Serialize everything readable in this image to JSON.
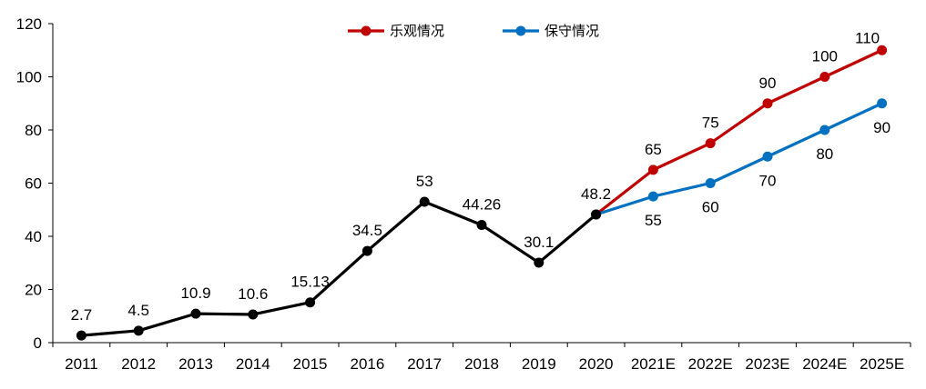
{
  "chart_data": {
    "type": "line",
    "categories": [
      "2011",
      "2012",
      "2013",
      "2014",
      "2015",
      "2016",
      "2017",
      "2018",
      "2019",
      "2020",
      "2021E",
      "2022E",
      "2023E",
      "2024E",
      "2025E"
    ],
    "ylim": [
      0,
      120
    ],
    "yticks": [
      "0",
      "20",
      "40",
      "60",
      "80",
      "100",
      "120"
    ],
    "legend_position": "top-center",
    "series": [
      {
        "color": "#000000",
        "x": [
          "2011",
          "2012",
          "2013",
          "2014",
          "2015",
          "2016",
          "2017",
          "2018",
          "2019",
          "2020"
        ],
        "values": [
          2.7,
          4.5,
          10.9,
          10.6,
          15.13,
          34.5,
          53,
          44.26,
          30.1,
          48.2
        ],
        "labels": [
          "2.7",
          "4.5",
          "10.9",
          "10.6",
          "15.13",
          "34.5",
          "53",
          "44.26",
          "30.1",
          "48.2"
        ],
        "label_pos": [
          "above",
          "above",
          "above",
          "above",
          "above",
          "above",
          "above",
          "above",
          "above",
          "above"
        ]
      },
      {
        "name": "乐观情况",
        "color": "#C00000",
        "x": [
          "2020",
          "2021E",
          "2022E",
          "2023E",
          "2024E",
          "2025E"
        ],
        "values": [
          48.2,
          65,
          75,
          90,
          100,
          110
        ],
        "labels": [
          "",
          "65",
          "75",
          "90",
          "100",
          "110"
        ],
        "label_pos": [
          "above",
          "above",
          "above",
          "above",
          "above",
          "above"
        ]
      },
      {
        "name": "保守情况",
        "color": "#0070C0",
        "x": [
          "2020",
          "2021E",
          "2022E",
          "2023E",
          "2024E",
          "2025E"
        ],
        "values": [
          48.2,
          55,
          60,
          70,
          80,
          90
        ],
        "labels": [
          "",
          "55",
          "60",
          "70",
          "80",
          "90"
        ],
        "label_pos": [
          "below",
          "below",
          "below",
          "below",
          "below",
          "below"
        ]
      }
    ],
    "legend": [
      {
        "name": "乐观情况",
        "color": "#C00000"
      },
      {
        "name": "保守情况",
        "color": "#0070C0"
      }
    ]
  }
}
